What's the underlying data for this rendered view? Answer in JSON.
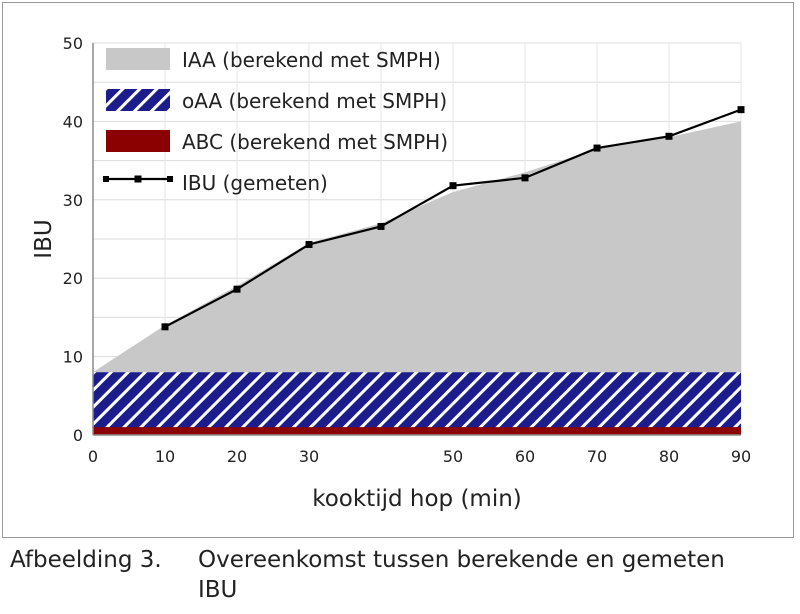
{
  "chart_data": {
    "type": "area",
    "xlabel": "kooktijd hop (min)",
    "ylabel": "IBU",
    "xlim": [
      0,
      90
    ],
    "ylim": [
      0,
      50
    ],
    "xticks": [
      0,
      10,
      20,
      30,
      50,
      60,
      70,
      80,
      90
    ],
    "yticks": [
      0,
      10,
      20,
      30,
      40,
      50
    ],
    "grid": true,
    "legend_position": "top-left",
    "x": [
      0,
      5,
      10,
      20,
      30,
      40,
      50,
      60,
      70,
      80,
      90
    ],
    "series": [
      {
        "name": "IAA (berekend met SMPH)",
        "style": "area",
        "color": "#c8c8c8",
        "values": [
          8,
          11,
          14,
          19,
          24.5,
          27,
          31,
          33.5,
          36.5,
          38,
          40
        ]
      },
      {
        "name": "oAA (berekend met SMPH)",
        "style": "hatched-area",
        "color": "#1c1c8c",
        "values": [
          8,
          8,
          8,
          8,
          8,
          8,
          8,
          8,
          8,
          8,
          8
        ]
      },
      {
        "name": "ABC (berekend met SMPH)",
        "style": "area",
        "color": "#8b0000",
        "values": [
          1,
          1,
          1,
          1,
          1,
          1,
          1,
          1,
          1,
          1,
          1
        ]
      },
      {
        "name": "IBU (gemeten)",
        "style": "line-markers",
        "color": "#000000",
        "points": [
          [
            10,
            13.8
          ],
          [
            20,
            18.6
          ],
          [
            30,
            24.3
          ],
          [
            40,
            26.6
          ],
          [
            50,
            31.8
          ],
          [
            60,
            32.8
          ],
          [
            70,
            36.6
          ],
          [
            80,
            38.1
          ],
          [
            90,
            41.5
          ]
        ]
      }
    ]
  },
  "caption": {
    "number": "Afbeelding 3.",
    "text": "Overeenkomst tussen berekende en gemeten",
    "text_line2": "IBU"
  }
}
